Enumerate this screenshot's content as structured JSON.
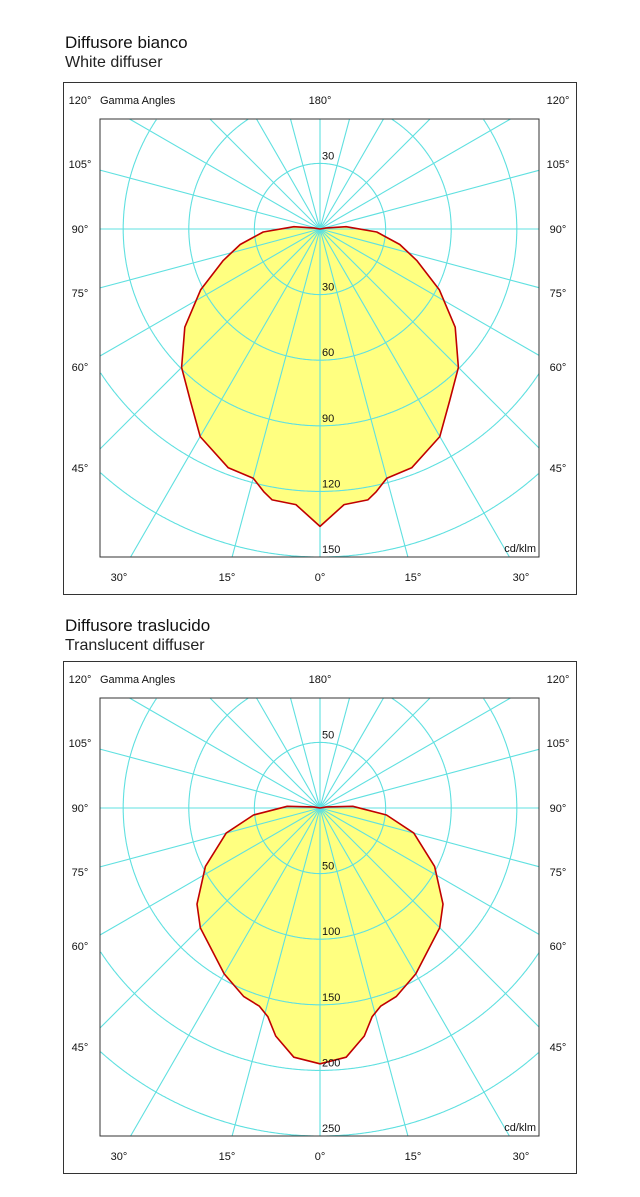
{
  "chart_data": [
    {
      "type": "polar",
      "title": "Diffusore bianco",
      "subtitle": "White diffuser",
      "axis_label": "Gamma Angles",
      "unit": "cd/klm",
      "top_label": "180°",
      "corner_labels": [
        "120°",
        "120°"
      ],
      "side_labels": [
        "105°",
        "90°",
        "75°",
        "60°",
        "45°"
      ],
      "bottom_labels": [
        "30°",
        "15°",
        "0°",
        "15°",
        "30°"
      ],
      "radial_ticks": [
        30,
        60,
        90,
        120,
        150
      ],
      "upper_tick": 30,
      "angle_step_deg": 15,
      "rmax": 150,
      "series": [
        {
          "gamma": [
            0,
            5,
            10,
            12,
            15,
            21,
            30,
            37,
            45,
            54,
            63,
            72,
            79,
            87,
            95,
            100
          ],
          "intensity": [
            136,
            126.5,
            125.8,
            123,
            118,
            117,
            109.6,
            98.5,
            89.5,
            76.4,
            61.3,
            46.5,
            37.2,
            26,
            12,
            3
          ]
        }
      ],
      "colors": {
        "grid": "#5fe0e0",
        "curve": "#c00000",
        "fill": "#ffff80",
        "frame": "#333333"
      }
    },
    {
      "type": "polar",
      "title": "Diffusore traslucido",
      "subtitle": "Translucent diffuser",
      "axis_label": "Gamma Angles",
      "unit": "cd/klm",
      "top_label": "180°",
      "corner_labels": [
        "120°",
        "120°"
      ],
      "side_labels": [
        "105°",
        "90°",
        "75°",
        "60°",
        "45°"
      ],
      "bottom_labels": [
        "30°",
        "15°",
        "0°",
        "15°",
        "30°"
      ],
      "radial_ticks": [
        50,
        100,
        150,
        200,
        250
      ],
      "upper_tick": 50,
      "angle_step_deg": 15,
      "rmax": 250,
      "series": [
        {
          "gamma": [
            0,
            6,
            11,
            14,
            17,
            22,
            30,
            45,
            52,
            63,
            75,
            84,
            93,
            100
          ],
          "intensity": [
            195,
            191,
            177,
            164,
            158,
            155,
            146,
            129,
            119,
            98,
            74,
            51,
            25,
            5
          ]
        }
      ],
      "colors": {
        "grid": "#5fe0e0",
        "curve": "#c00000",
        "fill": "#ffff80",
        "frame": "#333333"
      }
    }
  ]
}
